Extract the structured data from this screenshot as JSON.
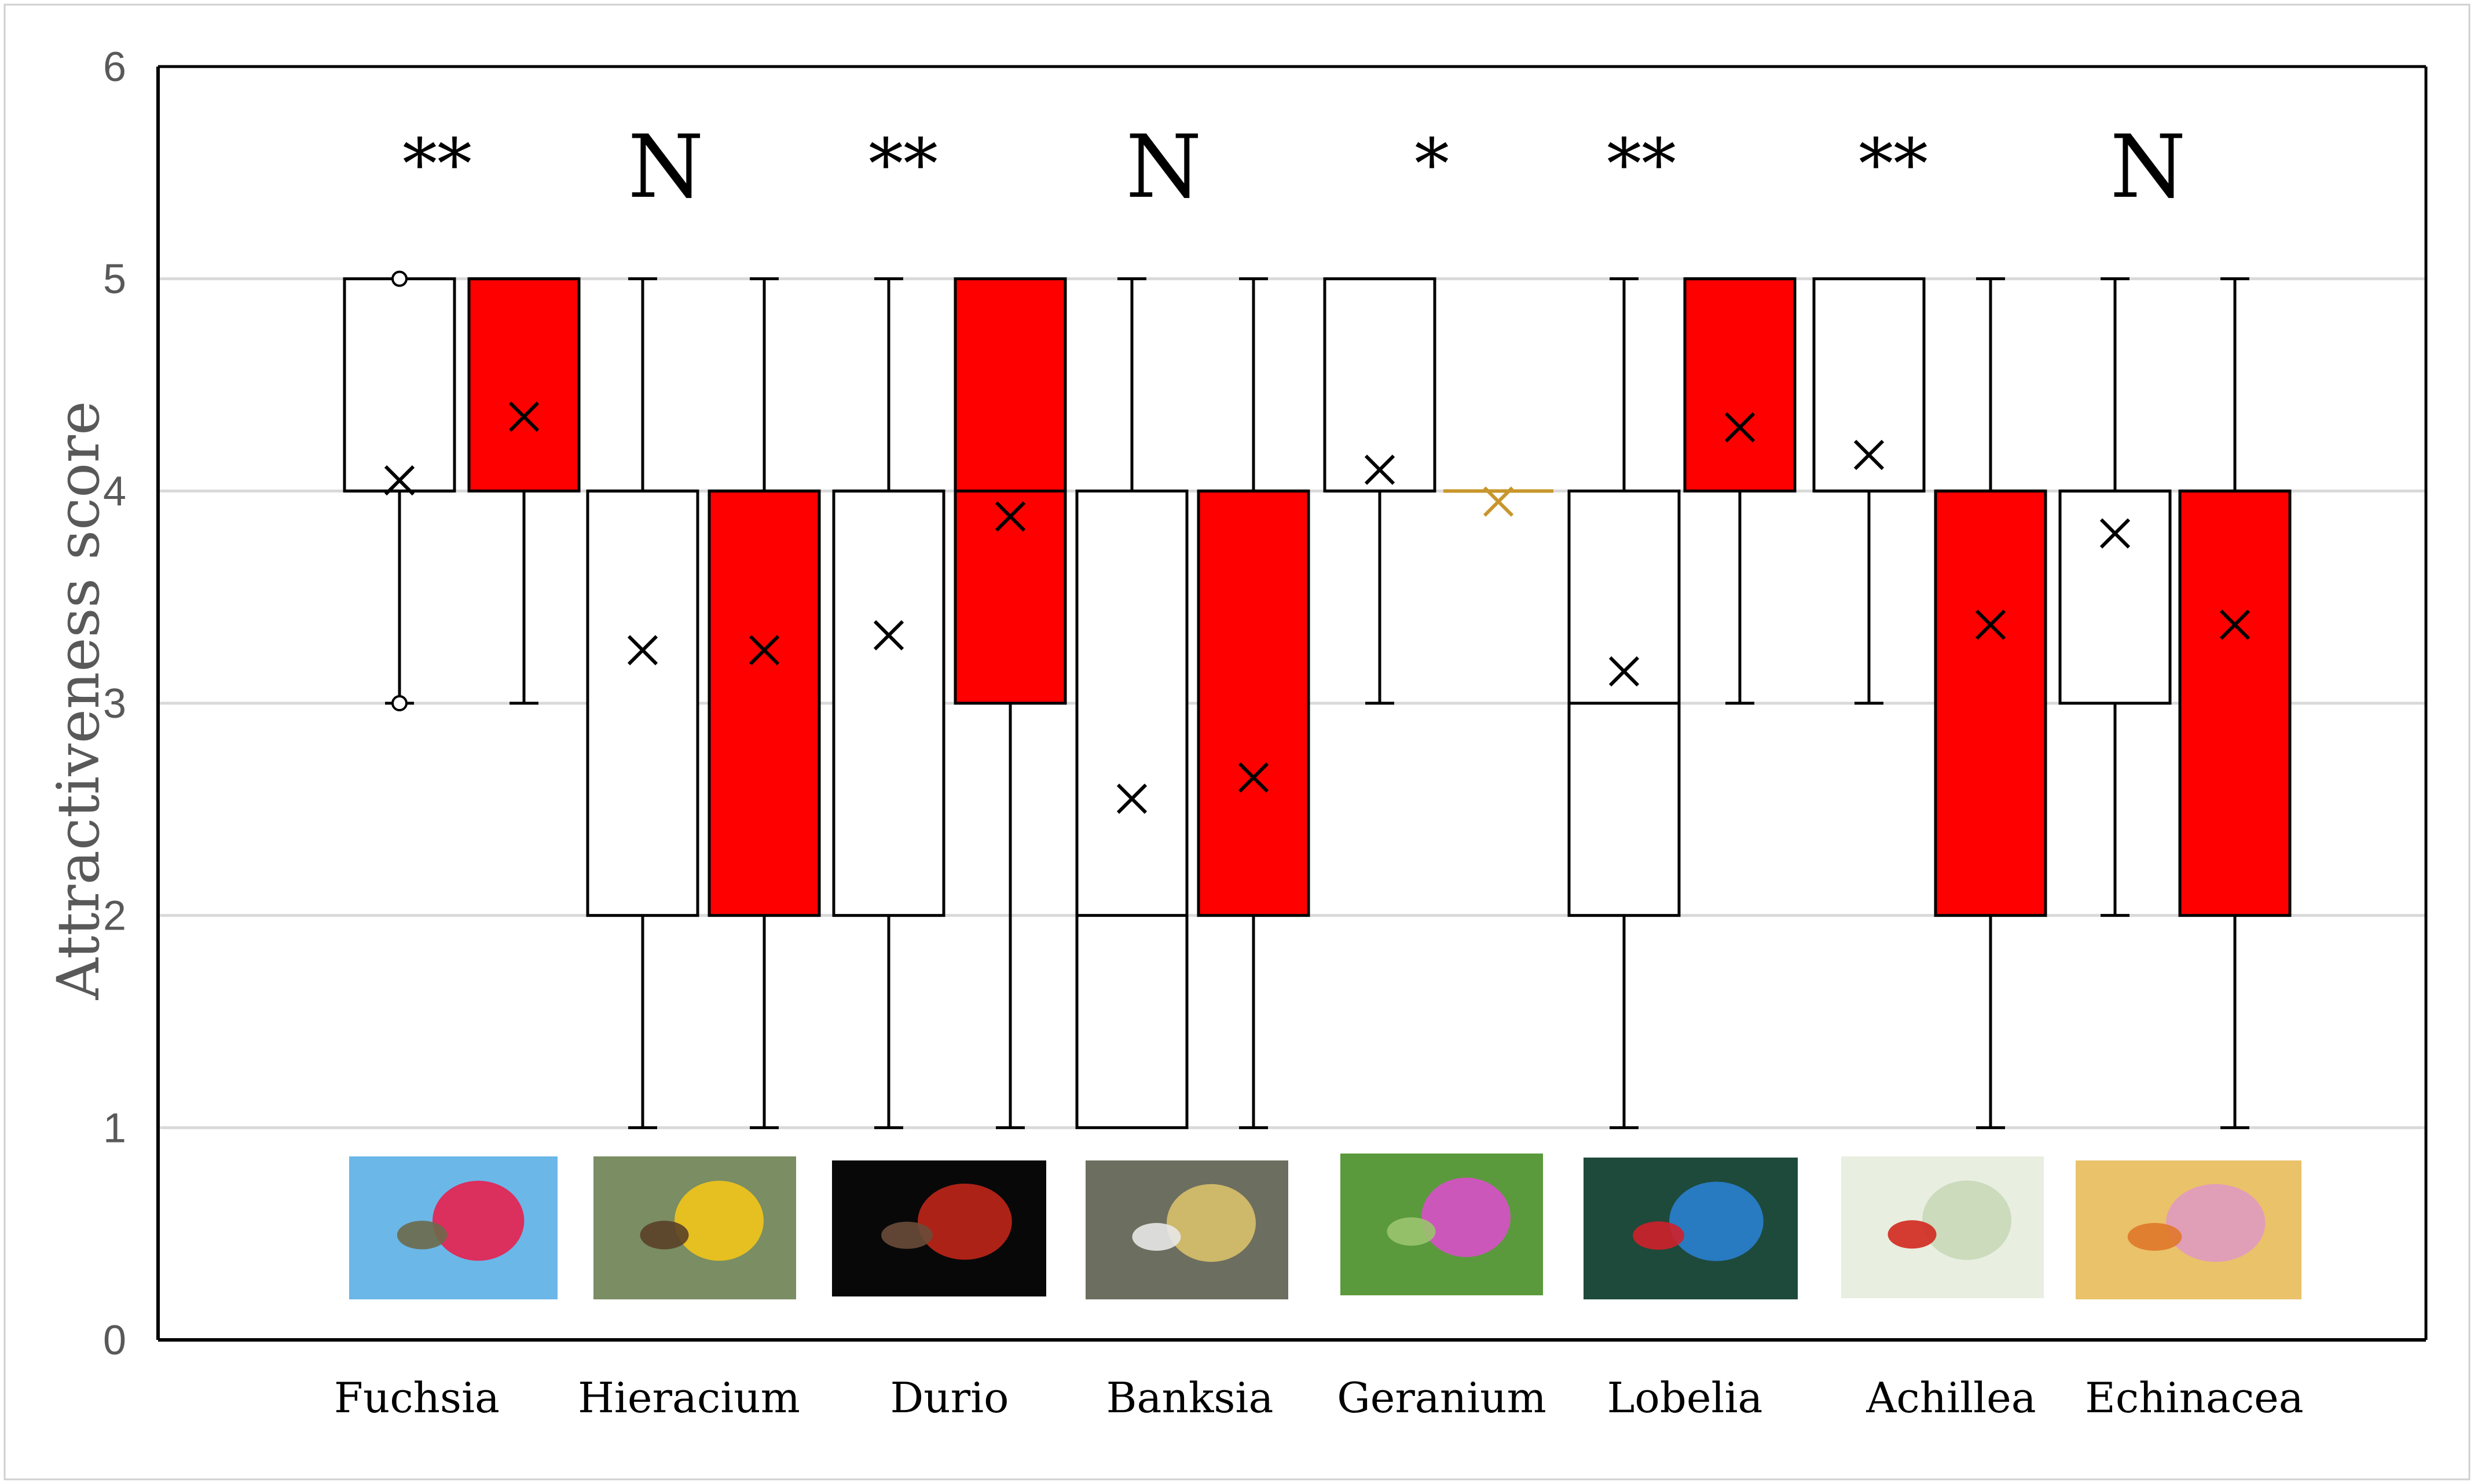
{
  "chart_data": {
    "type": "box",
    "ylabel": "Attractiveness score",
    "ylim": [
      0,
      6
    ],
    "yticks": [
      0,
      1,
      2,
      3,
      4,
      5,
      6
    ],
    "grid": true,
    "legend": "none",
    "colors": {
      "white_box": "#ffffff",
      "red_box": "#ff0000",
      "grid": "#d9d9d9",
      "axis": "#000000",
      "geranium_red": "#c8962d"
    },
    "categories": [
      "Fuchsia",
      "Hieracium",
      "Durio",
      "Banksia",
      "Geranium",
      "Lobelia",
      "Achillea",
      "Echinacea"
    ],
    "significance": [
      "**",
      "N",
      "**",
      "N",
      "*",
      "**",
      "**",
      "N"
    ],
    "image_labels": [
      "hummingbird-fuchsia-photo",
      "bee-hieracium-photo",
      "bat-durio-photo",
      "possum-banksia-photo",
      "bee-geranium-photo",
      "bird-lobelia-photo",
      "beetle-achillea-photo",
      "butterfly-echinacea-photo"
    ],
    "series": [
      {
        "fill": "white",
        "boxes": [
          {
            "min": 3,
            "q1": 4,
            "median": 4,
            "q3": 5,
            "max": 5,
            "mean": 4.05,
            "outliers": [
              3,
              5
            ]
          },
          {
            "min": 1,
            "q1": 2,
            "median": 4,
            "q3": 4,
            "max": 5,
            "mean": 3.25
          },
          {
            "min": 1,
            "q1": 2,
            "median": 4,
            "q3": 4,
            "max": 5,
            "mean": 3.32
          },
          {
            "min": 1,
            "q1": 1,
            "median": 2,
            "q3": 4,
            "max": 5,
            "mean": 2.55
          },
          {
            "min": 3,
            "q1": 4,
            "median": 4,
            "q3": 5,
            "max": 5,
            "mean": 4.1
          },
          {
            "min": 1,
            "q1": 2,
            "median": 3,
            "q3": 4,
            "max": 5,
            "mean": 3.15
          },
          {
            "min": 3,
            "q1": 4,
            "median": 4,
            "q3": 5,
            "max": 5,
            "mean": 4.17
          },
          {
            "min": 2,
            "q1": 3,
            "median": 4,
            "q3": 4,
            "max": 5,
            "mean": 3.8
          }
        ]
      },
      {
        "fill": "red",
        "boxes": [
          {
            "min": 3,
            "q1": 4,
            "median": 5,
            "q3": 5,
            "max": 5,
            "mean": 4.35
          },
          {
            "min": 1,
            "q1": 2,
            "median": 4,
            "q3": 4,
            "max": 5,
            "mean": 3.25
          },
          {
            "min": 1,
            "q1": 3,
            "median": 4,
            "q3": 5,
            "max": 5,
            "mean": 3.88
          },
          {
            "min": 1,
            "q1": 2,
            "median": 4,
            "q3": 4,
            "max": 5,
            "mean": 2.65
          },
          {
            "min": 4,
            "q1": 4,
            "median": 4,
            "q3": 4,
            "max": 4,
            "mean": 3.95,
            "flat": true
          },
          {
            "min": 3,
            "q1": 4,
            "median": 5,
            "q3": 5,
            "max": 5,
            "mean": 4.3
          },
          {
            "min": 1,
            "q1": 2,
            "median": 4,
            "q3": 4,
            "max": 5,
            "mean": 3.37
          },
          {
            "min": 1,
            "q1": 2,
            "median": 4,
            "q3": 4,
            "max": 5,
            "mean": 3.37
          }
        ]
      }
    ]
  }
}
